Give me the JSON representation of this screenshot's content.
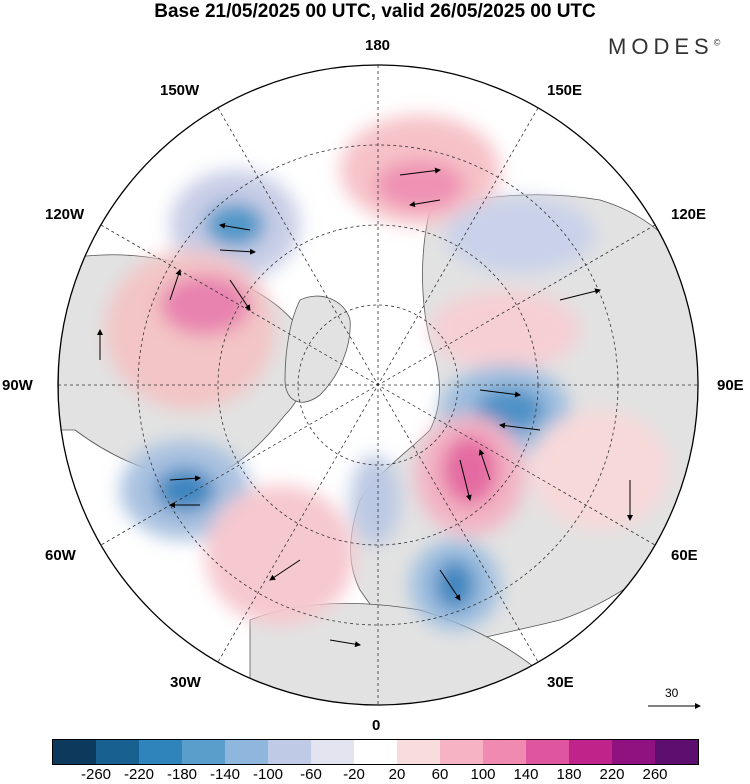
{
  "title": "Base 21/05/2025 00 UTC, valid 26/05/2025 00 UTC",
  "brand": {
    "name": "MODES",
    "mark": "©"
  },
  "longitude_labels": {
    "top": "180",
    "top_right": "150E",
    "upper_right": "120E",
    "right": "90E",
    "lower_right": "60E",
    "bottom_right": "30E",
    "bottom": "0",
    "bottom_left": "30W",
    "lower_left": "60W",
    "left": "90W",
    "upper_left": "120W",
    "top_left": "150W"
  },
  "wind_scale": {
    "label": "30"
  },
  "colorbar": {
    "colors": [
      "#0d3a5c",
      "#17608f",
      "#2f84bb",
      "#5a9fcc",
      "#8fb6dc",
      "#bfcbe6",
      "#e4e4f1",
      "#ffffff",
      "#f9dcdc",
      "#f6b3c3",
      "#f18ab0",
      "#e0559f",
      "#c0238a",
      "#8f1280",
      "#5c0f6f"
    ],
    "labels": [
      "-260",
      "-220",
      "-180",
      "-140",
      "-100",
      "-60",
      "-20",
      "20",
      "60",
      "100",
      "140",
      "180",
      "220",
      "260"
    ]
  }
}
